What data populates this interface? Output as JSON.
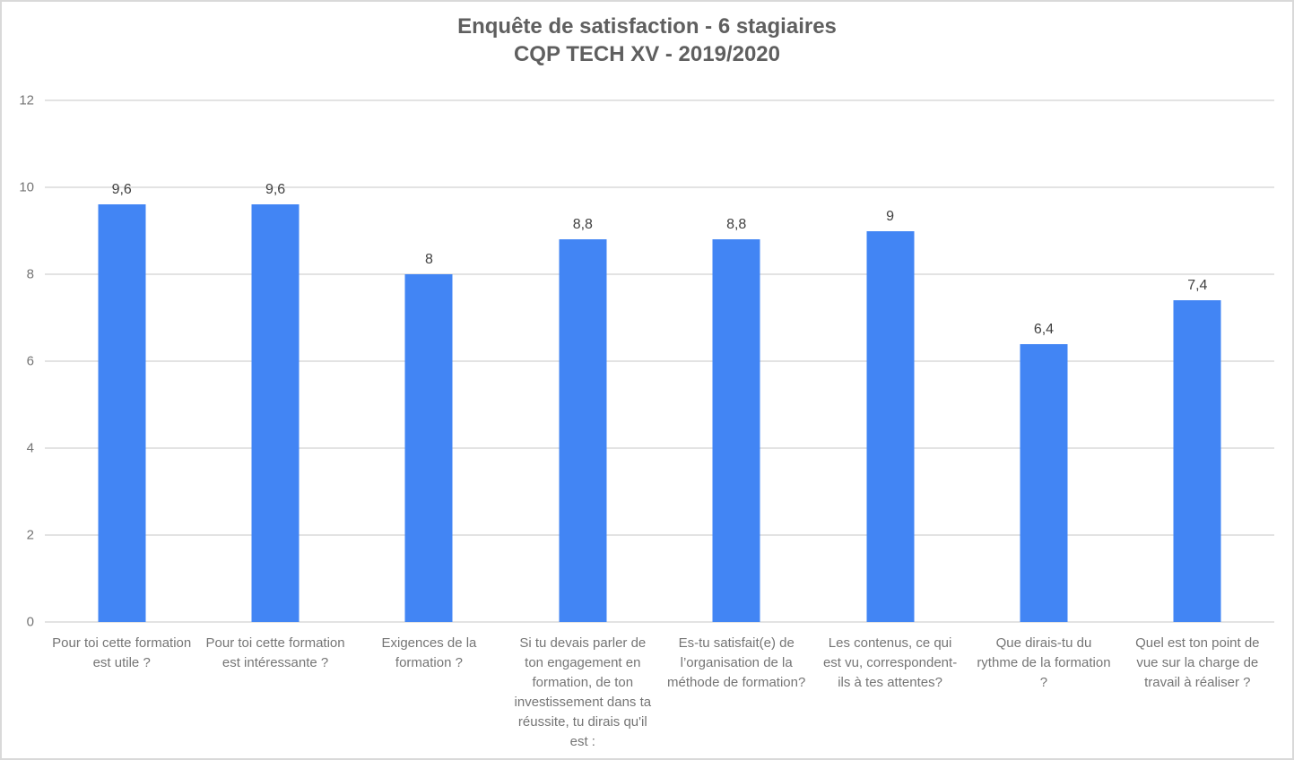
{
  "title": {
    "line1": "Enquête de satisfaction - 6 stagiaires",
    "line2": "CQP TECH XV - 2019/2020"
  },
  "colors": {
    "bar": "#4285f4",
    "gridline": "#e3e3e3",
    "title_text": "#5f5f5f",
    "axis_text": "#757575",
    "data_label_text": "#404040",
    "border": "#d9d9d9",
    "background": "#ffffff"
  },
  "chart_data": {
    "type": "bar",
    "title": "Enquête de satisfaction - 6 stagiaires CQP TECH XV - 2019/2020",
    "categories": [
      "Pour toi cette formation est utile ?",
      "Pour toi cette formation est intéressante ?",
      "Exigences de la formation ?",
      "Si tu devais parler de ton engagement en formation, de ton investissement dans ta réussite, tu dirais qu'il est :",
      "Es-tu satisfait(e) de l’organisation de la méthode de formation?",
      "Les contenus, ce qui est vu, correspondent-ils à tes attentes?",
      "Que dirais-tu du rythme de la formation ?",
      "Quel est ton point de vue sur la charge de travail à réaliser ?"
    ],
    "values": [
      9.6,
      9.6,
      8,
      8.8,
      8.8,
      9,
      6.4,
      7.4
    ],
    "value_labels": [
      "9,6",
      "9,6",
      "8",
      "8,8",
      "8,8",
      "9",
      "6,4",
      "7,4"
    ],
    "xlabel": "",
    "ylabel": "",
    "ylim": [
      0,
      12
    ],
    "yticks": [
      0,
      2,
      4,
      6,
      8,
      10,
      12
    ],
    "grid": "horizontal",
    "legend": "none"
  }
}
